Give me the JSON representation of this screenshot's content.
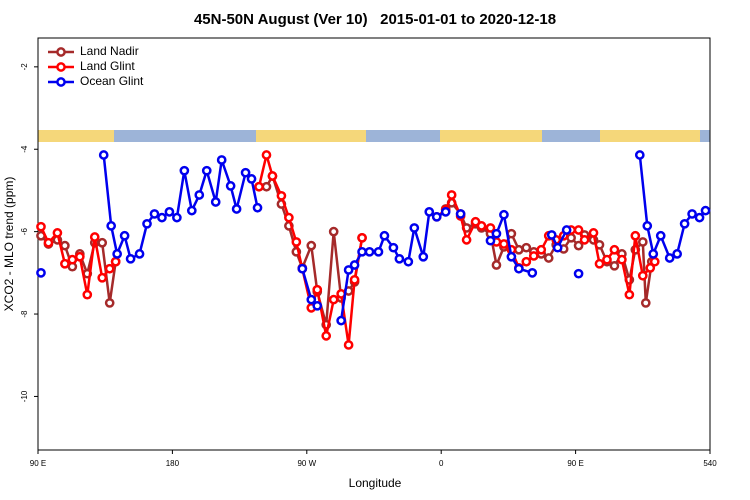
{
  "chart_data": {
    "type": "line",
    "title": "45N-50N August (Ver 10)   2015-01-01 to 2020-12-18",
    "x_label": "Longitude",
    "y_label": "XCO2 - MLO trend (ppm)",
    "xlim": [
      90,
      540
    ],
    "ylim": [
      -11.3,
      -1.3
    ],
    "xticks": [
      {
        "value": 90,
        "label": "90 E"
      },
      180,
      {
        "value": 270,
        "label": "90 W"
      },
      {
        "value": 360,
        "label": "0"
      },
      {
        "value": 450,
        "label": "90 E"
      },
      540
    ],
    "yticks": [
      -10,
      -8,
      -6,
      -4,
      -2
    ],
    "legend": "top-left",
    "series": [
      {
        "name": "Land Nadir",
        "color": "#a52a2a",
        "x": [
          92,
          97,
          103,
          108,
          113,
          118,
          123,
          128,
          133,
          138,
          142,
          null,
          238,
          243,
          247,
          253,
          258,
          263,
          267,
          273,
          277,
          283,
          288,
          293,
          298,
          302,
          307,
          null,
          363,
          367,
          373,
          377,
          383,
          387,
          393,
          397,
          402,
          407,
          412,
          417,
          422,
          427,
          432,
          437,
          442,
          447,
          452,
          456,
          462,
          466,
          471,
          476,
          481,
          486,
          490,
          495,
          497,
          501
        ],
        "values": [
          -6.1,
          -6.3,
          -6.2,
          -6.34,
          -6.85,
          -6.54,
          -7.02,
          -6.27,
          -6.27,
          -7.73,
          -6.73,
          null,
          -4.91,
          -4.91,
          -4.65,
          -5.33,
          -5.86,
          -6.49,
          -6.88,
          -6.34,
          -7.46,
          -8.26,
          -6.0,
          -7.61,
          -7.44,
          -7.22,
          -6.15,
          null,
          -5.45,
          -5.3,
          -5.57,
          -5.91,
          -5.81,
          -5.91,
          -6.05,
          -6.81,
          -6.37,
          -6.05,
          -6.44,
          -6.39,
          -6.49,
          -6.54,
          -6.64,
          -6.32,
          -6.42,
          -6.15,
          -6.34,
          -6.08,
          -6.2,
          -6.32,
          -6.73,
          -6.83,
          -6.54,
          -7.17,
          -6.44,
          -6.25,
          -7.73,
          -6.73
        ]
      },
      {
        "name": "Land Glint",
        "color": "#ff0000",
        "x": [
          92,
          97,
          103,
          108,
          113,
          118,
          123,
          128,
          133,
          138,
          142,
          null,
          238,
          243,
          247,
          253,
          258,
          263,
          267,
          273,
          277,
          283,
          288,
          293,
          298,
          302,
          307,
          null,
          357,
          363,
          367,
          373,
          377,
          383,
          387,
          393,
          397,
          402,
          407,
          412,
          417,
          422,
          427,
          432,
          437,
          442,
          447,
          452,
          456,
          462,
          466,
          471,
          476,
          481,
          486,
          490,
          495,
          500,
          503
        ],
        "values": [
          -5.88,
          -6.27,
          -6.03,
          -6.78,
          -6.68,
          -6.61,
          -7.53,
          -6.13,
          -7.12,
          -6.9,
          -6.73,
          null,
          -4.91,
          -4.14,
          -4.65,
          -5.13,
          -5.66,
          -6.25,
          -6.9,
          -7.85,
          -7.41,
          -8.53,
          -7.65,
          -7.51,
          -8.75,
          -7.17,
          -6.15,
          null,
          -5.64,
          -5.47,
          -5.11,
          -5.62,
          -6.2,
          -5.76,
          -5.86,
          -5.91,
          -6.25,
          -6.3,
          -6.44,
          -6.88,
          -6.73,
          -6.59,
          -6.44,
          -6.1,
          -6.2,
          -6.1,
          -5.96,
          -5.96,
          -6.2,
          -6.03,
          -6.78,
          -6.68,
          -6.44,
          -6.68,
          -7.53,
          -6.1,
          -7.07,
          -6.88,
          -6.73
        ]
      },
      {
        "name": "Ocean Glint",
        "color": "#0000ee",
        "x": [
          92,
          null,
          134,
          139,
          143,
          148,
          152,
          158,
          163,
          168,
          173,
          178,
          183,
          188,
          193,
          198,
          203,
          209,
          213,
          219,
          223,
          229,
          233,
          237,
          null,
          267,
          273,
          277,
          null,
          293,
          298,
          302,
          307,
          312,
          318,
          322,
          328,
          332,
          338,
          342,
          348,
          352,
          357,
          363,
          null,
          373,
          null,
          393,
          397,
          402,
          407,
          412,
          421,
          null,
          434,
          438,
          444,
          null,
          452,
          null,
          493,
          498,
          502,
          507,
          513,
          518,
          523,
          528,
          533,
          537
        ],
        "values": [
          -7.0,
          null,
          -4.14,
          -5.86,
          -6.54,
          -6.1,
          -6.66,
          -6.54,
          -5.81,
          -5.57,
          -5.66,
          -5.52,
          -5.66,
          -4.52,
          -5.49,
          -5.11,
          -4.52,
          -5.28,
          -4.26,
          -4.89,
          -5.45,
          -4.57,
          -4.72,
          -5.42,
          null,
          -6.9,
          -7.65,
          -7.8,
          null,
          -8.16,
          -6.93,
          -6.81,
          -6.49,
          -6.49,
          -6.49,
          -6.1,
          -6.39,
          -6.66,
          -6.73,
          -5.91,
          -6.61,
          -5.52,
          -5.64,
          -5.52,
          null,
          -5.57,
          null,
          -6.22,
          -6.05,
          -5.59,
          -6.61,
          -6.9,
          -7.0,
          null,
          -6.08,
          -6.39,
          -5.96,
          null,
          -7.02,
          null,
          -4.14,
          -5.86,
          -6.54,
          -6.1,
          -6.64,
          -6.54,
          -5.81,
          -5.57,
          -5.66,
          -5.49
        ]
      }
    ]
  }
}
